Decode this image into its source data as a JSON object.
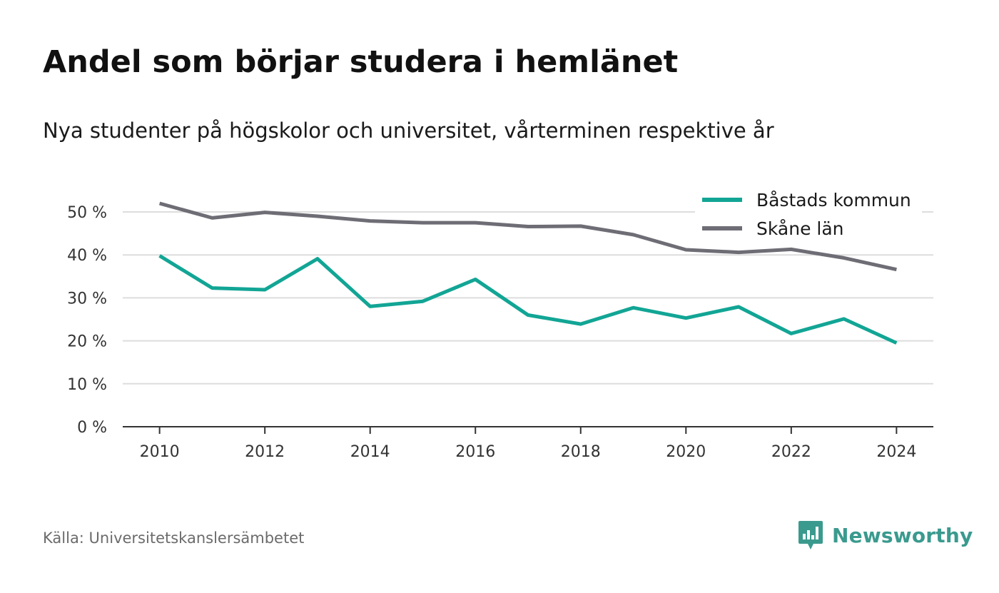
{
  "header": {
    "title": "Andel som börjar studera i hemlänet",
    "subtitle": "Nya studenter på högskolor och universitet, vårterminen respektive år"
  },
  "footer": {
    "source": "Källa: Universitetskanslersämbetet",
    "brand": "Newsworthy",
    "brand_icon": "bar-chart-speech-bubble-icon"
  },
  "colors": {
    "series_1": "#12a595",
    "series_2": "#6e6d75",
    "gridline": "#dddddd",
    "axis": "#333333",
    "brand": "#3a9a8e"
  },
  "chart_data": {
    "type": "line",
    "title": "Andel som börjar studera i hemlänet",
    "subtitle": "Nya studenter på högskolor och universitet, vårterminen respektive år",
    "xlabel": "",
    "ylabel": "",
    "x": [
      2010,
      2011,
      2012,
      2013,
      2014,
      2015,
      2016,
      2017,
      2018,
      2019,
      2020,
      2021,
      2022,
      2023,
      2024
    ],
    "xlim": [
      2009.3,
      2024.7
    ],
    "ylim": [
      0,
      50
    ],
    "x_ticks": [
      2010,
      2012,
      2014,
      2016,
      2018,
      2020,
      2022,
      2024
    ],
    "x_tick_labels": [
      "2010",
      "2012",
      "2014",
      "2016",
      "2018",
      "2020",
      "2022",
      "2024"
    ],
    "y_ticks": [
      0,
      10,
      20,
      30,
      40,
      50
    ],
    "y_tick_labels": [
      "0 %",
      "10 %",
      "20 %",
      "30 %",
      "40 %",
      "50 %"
    ],
    "grid": true,
    "legend_position": "top-right",
    "series": [
      {
        "name": "Båstads kommun",
        "color": "#12a595",
        "values": [
          39.8,
          32.3,
          31.9,
          39.1,
          28.0,
          29.2,
          34.3,
          26.0,
          23.9,
          27.7,
          25.3,
          27.9,
          21.7,
          25.1,
          19.5
        ]
      },
      {
        "name": "Skåne län",
        "color": "#6e6d75",
        "values": [
          52.0,
          48.6,
          49.9,
          49.0,
          47.9,
          47.5,
          47.5,
          46.6,
          46.7,
          44.7,
          41.2,
          40.6,
          41.3,
          39.3,
          36.6
        ]
      }
    ]
  }
}
